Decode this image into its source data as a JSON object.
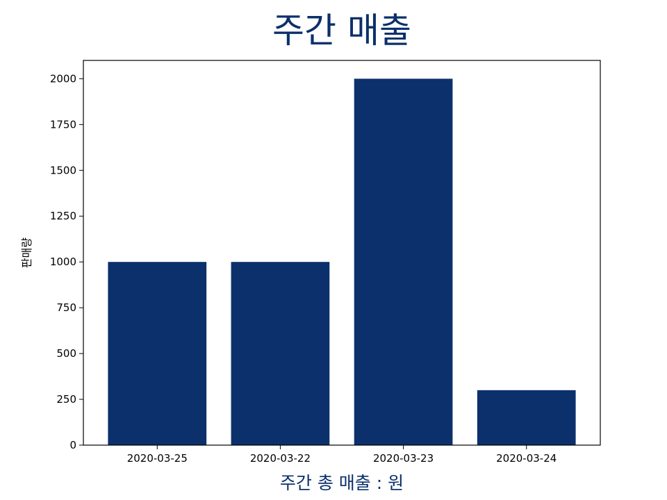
{
  "chart_data": {
    "type": "bar",
    "title": "주간 매출",
    "xlabel": "주간 총 매출 : 원",
    "ylabel": "판매량",
    "categories": [
      "2020-03-25",
      "2020-03-22",
      "2020-03-23",
      "2020-03-24"
    ],
    "values": [
      1000,
      1000,
      2000,
      300
    ],
    "ylim": [
      0,
      2100
    ],
    "yticks": [
      0,
      250,
      500,
      750,
      1000,
      1250,
      1500,
      1750,
      2000
    ],
    "ytick_labels": [
      "0",
      "250",
      "500",
      "750",
      "1000",
      "1250",
      "1500",
      "1750",
      "2000"
    ],
    "grid": false,
    "colors": {
      "bar": "#0b306b",
      "title": "#0b306b",
      "xlabel": "#0b306b",
      "axes": "#000000"
    }
  }
}
